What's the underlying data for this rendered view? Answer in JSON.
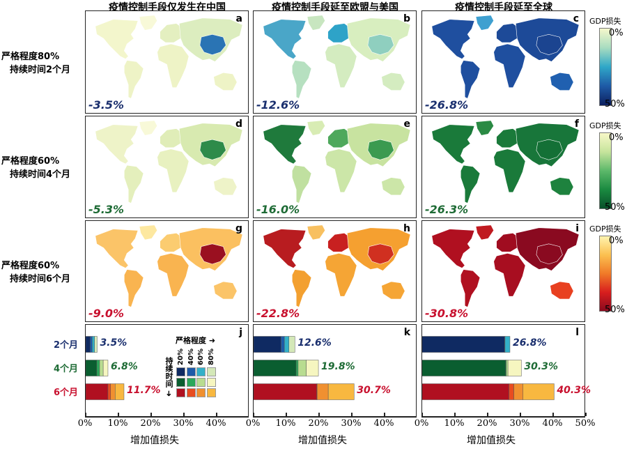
{
  "column_titles": [
    "疫情控制手段仅发生在中国",
    "疫情控制手段延至欧盟与美国",
    "疫情控制手段延至全球"
  ],
  "row_labels": [
    {
      "severity": "严格程度80%",
      "duration": "持续时间2个月"
    },
    {
      "severity": "严格程度60%",
      "duration": "持续时间4个月"
    },
    {
      "severity": "严格程度60%",
      "duration": "持续时间6个月"
    }
  ],
  "colorbars": [
    {
      "title": "GDP损失",
      "min_label": "0%",
      "max_label": "50%",
      "colors": [
        "#f6f8cc",
        "#a8dcc0",
        "#2fa7c8",
        "#1e5aa6",
        "#0c1f5e"
      ]
    },
    {
      "title": "GDP损失",
      "min_label": "0%",
      "max_label": "50%",
      "colors": [
        "#f8f8c8",
        "#c6e49c",
        "#5cb86a",
        "#1a8a40",
        "#08502a"
      ]
    },
    {
      "title": "GDP损失",
      "min_label": "0%",
      "max_label": "50%",
      "colors": [
        "#fff4b0",
        "#fbc050",
        "#f07a28",
        "#d81e1e",
        "#8a0a1e"
      ]
    }
  ],
  "maps": [
    {
      "letter": "a",
      "total": "-3.5%",
      "color": "#1a2f6e",
      "regions": {
        "north_america": "#f3f6cc",
        "greenland": "#f8f9d8",
        "south_america": "#eef3c6",
        "europe": "#e4efc0",
        "africa": "#eef3c6",
        "asia": "#dcedbf",
        "china": "#2a74b4",
        "australia": "#eef3c6"
      }
    },
    {
      "letter": "b",
      "total": "-12.6%",
      "color": "#1a2f6e",
      "regions": {
        "north_america": "#4aa6c8",
        "greenland": "#c8e6c0",
        "south_america": "#b6e0c0",
        "europe": "#2ea3c8",
        "africa": "#d4ecc0",
        "asia": "#d8eebf",
        "china": "#8fcfbf",
        "australia": "#d4ecc0"
      }
    },
    {
      "letter": "c",
      "total": "-26.8%",
      "color": "#1a2f6e",
      "regions": {
        "north_america": "#1f4f9f",
        "greenland": "#3fa0d0",
        "south_america": "#1f4f9f",
        "europe": "#1d4a98",
        "africa": "#1f4f9f",
        "asia": "#1d4a98",
        "china": "#1b4490",
        "australia": "#2060b0"
      }
    },
    {
      "letter": "d",
      "total": "-5.3%",
      "color": "#1e6b35",
      "regions": {
        "north_america": "#eef3c8",
        "greenland": "#f8f9d8",
        "south_america": "#e4efbc",
        "europe": "#e0edb8",
        "africa": "#e8f1c0",
        "asia": "#d8eab0",
        "china": "#2e8b4a",
        "australia": "#eef3c8"
      }
    },
    {
      "letter": "e",
      "total": "-16.0%",
      "color": "#1e6b35",
      "regions": {
        "north_america": "#1f7a3c",
        "greenland": "#d8ecb4",
        "south_america": "#c0e0a0",
        "europe": "#4ea85c",
        "africa": "#cce6a8",
        "asia": "#c8e3a0",
        "china": "#3b9a50",
        "australia": "#cce6a8"
      }
    },
    {
      "letter": "f",
      "total": "-26.3%",
      "color": "#1e6b35",
      "regions": {
        "north_america": "#1a7a3a",
        "greenland": "#2a8a44",
        "south_america": "#1a7a3a",
        "europe": "#1a7a3a",
        "africa": "#1a7a3a",
        "asia": "#18763a",
        "china": "#147036",
        "australia": "#1e823e"
      }
    },
    {
      "letter": "g",
      "total": "-9.0%",
      "color": "#c8102e",
      "regions": {
        "north_america": "#fbc468",
        "greenland": "#fde8a0",
        "south_america": "#f9b450",
        "europe": "#fbcc70",
        "africa": "#f9b450",
        "asia": "#fbc060",
        "china": "#9a1020",
        "australia": "#fbc468"
      }
    },
    {
      "letter": "h",
      "total": "-22.8%",
      "color": "#c8102e",
      "regions": {
        "north_america": "#b81c20",
        "greenland": "#f8c060",
        "south_america": "#f3a030",
        "europe": "#c82020",
        "africa": "#f5a535",
        "asia": "#f5a030",
        "china": "#d03020",
        "australia": "#f5a535"
      }
    },
    {
      "letter": "i",
      "total": "-30.8%",
      "color": "#c8102e",
      "regions": {
        "north_america": "#b01020",
        "greenland": "#c01a20",
        "south_america": "#b01020",
        "europe": "#a00c20",
        "africa": "#a80e20",
        "asia": "#8a0a20",
        "china": "#8a0a20",
        "australia": "#e84020"
      }
    }
  ],
  "chart_data": [
    {
      "type": "bar",
      "stacked": true,
      "orientation": "horizontal",
      "letter": "j",
      "xlabel": "增加值损失",
      "xlim": [
        0,
        50
      ],
      "xticks": [
        "0%",
        "10%",
        "20%",
        "30%",
        "40%"
      ],
      "categories": [
        "2个月",
        "4个月",
        "6个月"
      ],
      "series_by_severity": [
        "20%",
        "40%",
        "60%",
        "80%"
      ],
      "values": [
        [
          1.4,
          0.6,
          0.7,
          0.8
        ],
        [
          3.4,
          0.85,
          1.1,
          1.45
        ],
        [
          6.8,
          0.8,
          1.4,
          2.7
        ]
      ],
      "totals": [
        "3.5%",
        "6.8%",
        "11.7%"
      ]
    },
    {
      "type": "bar",
      "stacked": true,
      "orientation": "horizontal",
      "letter": "k",
      "xlabel": "增加值损失",
      "xlim": [
        0,
        50
      ],
      "xticks": [
        "0%",
        "10%",
        "20%",
        "30%",
        "40%"
      ],
      "categories": [
        "2个月",
        "4个月",
        "6个月"
      ],
      "series_by_severity": [
        "20%",
        "40%",
        "60%",
        "80%"
      ],
      "values": [
        [
          8.4,
          1.0,
          1.4,
          1.8
        ],
        [
          13.0,
          0.6,
          2.5,
          3.7
        ],
        [
          19.3,
          0.1,
          3.4,
          7.9
        ]
      ],
      "totals": [
        "12.6%",
        "19.8%",
        "30.7%"
      ]
    },
    {
      "type": "bar",
      "stacked": true,
      "orientation": "horizontal",
      "letter": "l",
      "xlabel": "增加值损失",
      "xlim": [
        0,
        50
      ],
      "xticks": [
        "0%",
        "10%",
        "20%",
        "30%",
        "40%",
        "50%"
      ],
      "categories": [
        "2个月",
        "4个月",
        "6个月"
      ],
      "series_by_severity": [
        "20%",
        "40%",
        "60%",
        "80%"
      ],
      "values": [
        [
          25.2,
          0.1,
          1.5,
          0
        ],
        [
          25.5,
          0.2,
          0.5,
          4.1
        ],
        [
          26.5,
          1.5,
          2.8,
          9.5
        ]
      ],
      "totals": [
        "26.8%",
        "30.3%",
        "40.3%"
      ]
    }
  ],
  "bar_palette": [
    [
      "#0f2a62",
      "#1d5aa8",
      "#33b0c8",
      "#d4e8b8"
    ],
    [
      "#0a5e30",
      "#2aa85a",
      "#b8dc90",
      "#f6f6c0"
    ],
    [
      "#b01020",
      "#e84c20",
      "#f09030",
      "#f8b840"
    ]
  ],
  "row_colors": [
    "#1a2f6e",
    "#1e6b35",
    "#c8102e"
  ],
  "legend": {
    "severity_label": "严格程度",
    "duration_label": "持续时间",
    "severity_levels": [
      "20%",
      "40%",
      "60%",
      "80%"
    ]
  }
}
